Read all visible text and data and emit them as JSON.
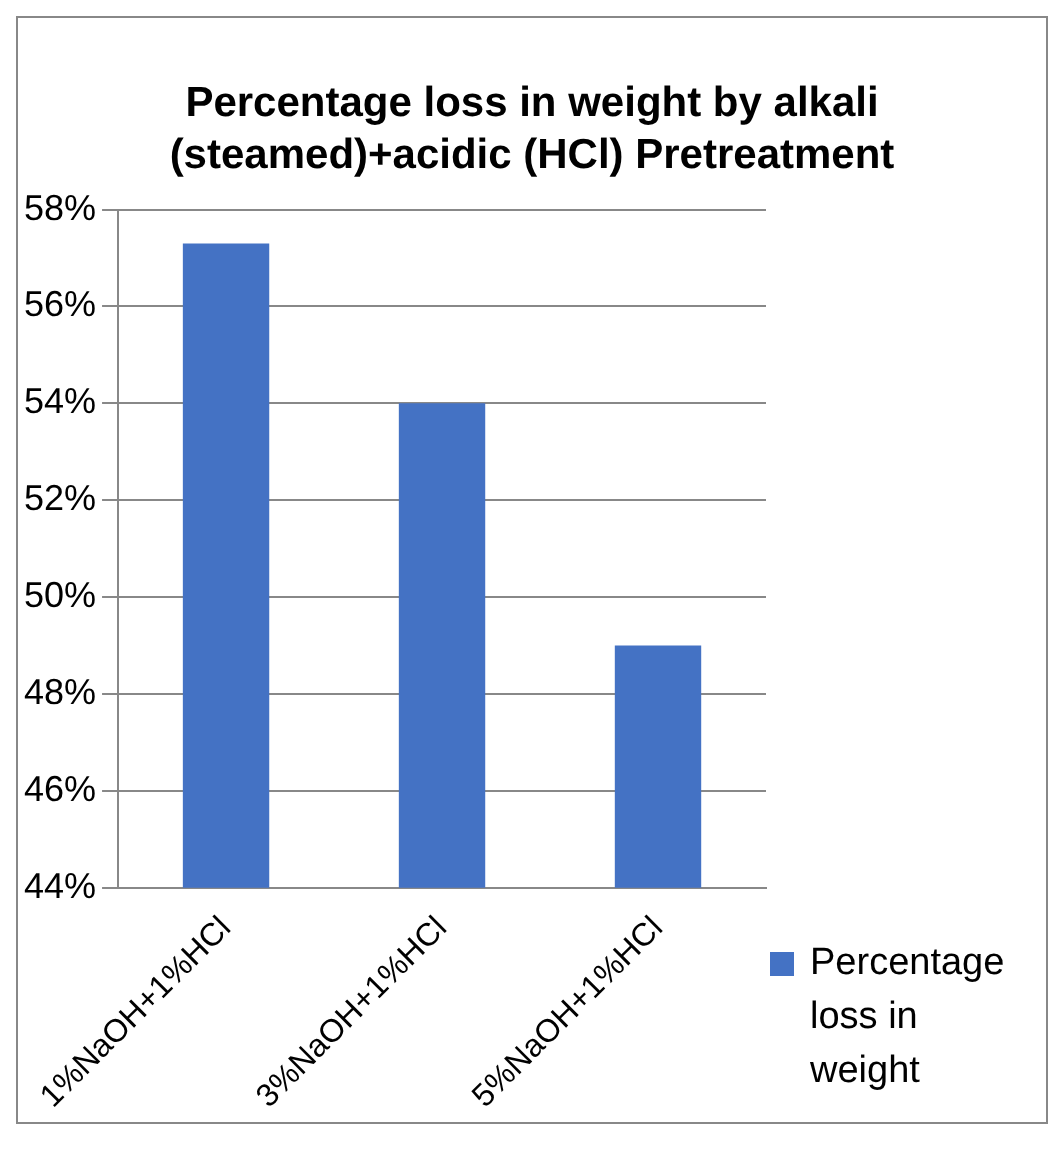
{
  "chart_data": {
    "type": "bar",
    "title": "Percentage loss in weight by alkali (steamed)+acidic (HCl) Pretreatment",
    "categories": [
      "1%NaOH+1%HCl",
      "3%NaOH+1%HCl",
      "5%NaOH+1%HCl"
    ],
    "series": [
      {
        "name": "Percentage loss in weight",
        "color": "#4472c4",
        "values": [
          57.3,
          54.0,
          49.0
        ]
      }
    ],
    "ylim": [
      44,
      58
    ],
    "yticks": [
      {
        "value": 44,
        "label": "44%"
      },
      {
        "value": 46,
        "label": "46%"
      },
      {
        "value": 48,
        "label": "48%"
      },
      {
        "value": 50,
        "label": "50%"
      },
      {
        "value": 52,
        "label": "52%"
      },
      {
        "value": 54,
        "label": "54%"
      },
      {
        "value": 56,
        "label": "56%"
      },
      {
        "value": 58,
        "label": "58%"
      }
    ],
    "grid": "y",
    "legend": "bottom right"
  }
}
